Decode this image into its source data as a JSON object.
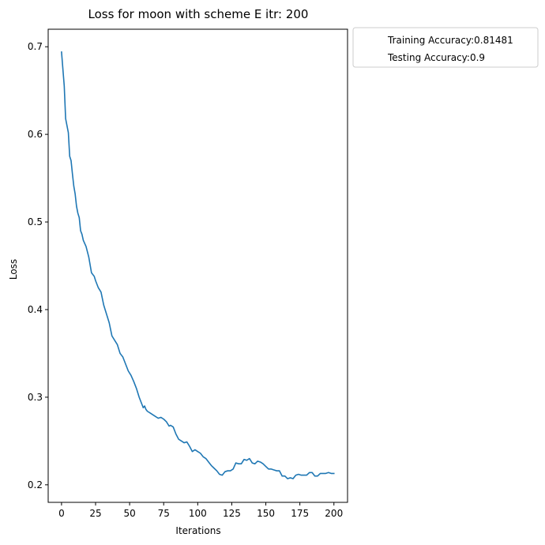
{
  "chart_data": {
    "type": "line",
    "title": "Loss for moon with scheme E itr: 200",
    "xlabel": "Iterations",
    "ylabel": "Loss",
    "xlim": [
      -9.8,
      210
    ],
    "ylim": [
      0.18,
      0.72
    ],
    "xticks": [
      0,
      25,
      50,
      75,
      100,
      125,
      150,
      175,
      200
    ],
    "yticks": [
      0.2,
      0.3,
      0.4,
      0.5,
      0.6,
      0.7
    ],
    "xtick_labels": [
      "0",
      "25",
      "50",
      "75",
      "100",
      "125",
      "150",
      "175",
      "200"
    ],
    "ytick_labels": [
      "0.2",
      "0.3",
      "0.4",
      "0.5",
      "0.6",
      "0.7"
    ],
    "grid": false,
    "legend_position": "outside-upper-right",
    "legend": [
      "Training Accuracy:0.81481",
      "Testing Accuracy:0.9"
    ],
    "series": [
      {
        "color": "#1f77b4",
        "x": [
          0,
          2,
          3,
          5,
          6,
          7,
          8,
          9,
          10,
          11,
          12,
          13,
          14,
          15,
          16,
          18,
          20,
          22,
          24,
          25,
          27,
          29,
          31,
          33,
          35,
          37,
          39,
          41,
          43,
          45,
          47,
          49,
          51,
          53,
          55,
          57,
          59,
          60,
          61,
          62,
          63,
          64,
          65,
          67,
          69,
          71,
          73,
          75,
          77,
          79,
          80,
          82,
          84,
          86,
          88,
          90,
          92,
          94,
          96,
          98,
          100,
          102,
          104,
          106,
          108,
          110,
          112,
          114,
          116,
          118,
          120,
          122,
          124,
          126,
          128,
          130,
          132,
          134,
          136,
          138,
          140,
          142,
          144,
          146,
          148,
          150,
          152,
          154,
          156,
          158,
          160,
          162,
          164,
          166,
          168,
          170,
          172,
          174,
          176,
          178,
          180,
          182,
          184,
          186,
          188,
          190,
          192,
          194,
          196,
          198,
          200
        ],
        "y": [
          0.694,
          0.655,
          0.618,
          0.602,
          0.575,
          0.57,
          0.555,
          0.541,
          0.532,
          0.518,
          0.51,
          0.505,
          0.49,
          0.486,
          0.479,
          0.472,
          0.46,
          0.442,
          0.438,
          0.433,
          0.425,
          0.42,
          0.405,
          0.395,
          0.385,
          0.37,
          0.365,
          0.36,
          0.35,
          0.346,
          0.338,
          0.33,
          0.325,
          0.318,
          0.31,
          0.3,
          0.292,
          0.288,
          0.29,
          0.286,
          0.284,
          0.283,
          0.282,
          0.28,
          0.278,
          0.276,
          0.277,
          0.275,
          0.272,
          0.267,
          0.268,
          0.266,
          0.258,
          0.252,
          0.25,
          0.248,
          0.249,
          0.244,
          0.238,
          0.24,
          0.238,
          0.236,
          0.232,
          0.23,
          0.226,
          0.222,
          0.219,
          0.216,
          0.212,
          0.211,
          0.215,
          0.216,
          0.216,
          0.218,
          0.225,
          0.224,
          0.224,
          0.229,
          0.228,
          0.23,
          0.225,
          0.224,
          0.227,
          0.226,
          0.224,
          0.221,
          0.218,
          0.218,
          0.217,
          0.216,
          0.216,
          0.21,
          0.21,
          0.207,
          0.208,
          0.207,
          0.211,
          0.212,
          0.211,
          0.211,
          0.211,
          0.214,
          0.214,
          0.21,
          0.21,
          0.213,
          0.213,
          0.213,
          0.214,
          0.213,
          0.213
        ]
      }
    ]
  }
}
